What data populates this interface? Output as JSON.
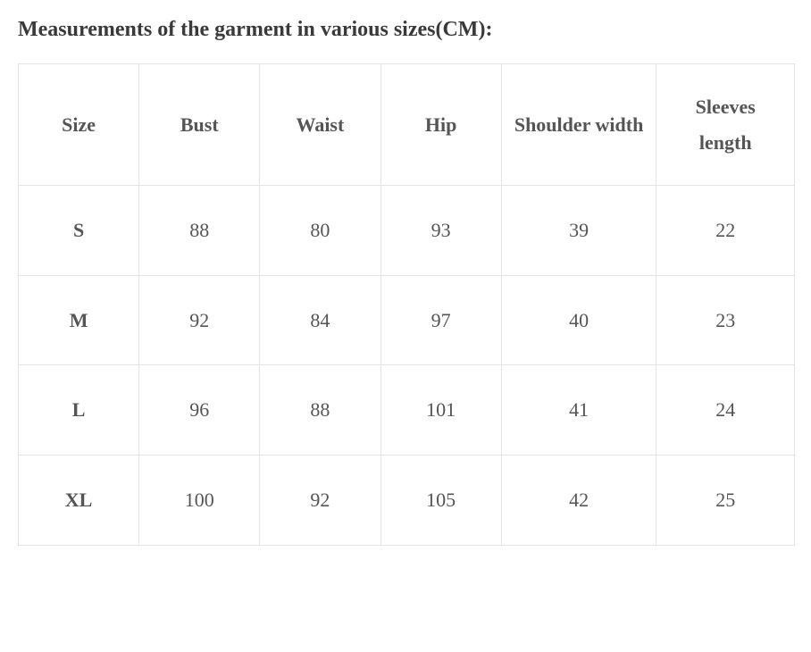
{
  "title": "Measurements of the garment in various sizes(CM):",
  "table": {
    "columns": [
      "Size",
      "Bust",
      "Waist",
      "Hip",
      "Shoulder width",
      "Sleeves length"
    ],
    "rows": [
      [
        "S",
        "88",
        "80",
        "93",
        "39",
        "22"
      ],
      [
        "M",
        "92",
        "84",
        "97",
        "40",
        "23"
      ],
      [
        "L",
        "96",
        "88",
        "101",
        "41",
        "24"
      ],
      [
        "XL",
        "100",
        "92",
        "105",
        "42",
        "25"
      ]
    ],
    "border_color": "#e4e4e4",
    "text_color": "#555555",
    "header_fontsize": 22,
    "cell_fontsize": 22,
    "background_color": "#ffffff"
  }
}
